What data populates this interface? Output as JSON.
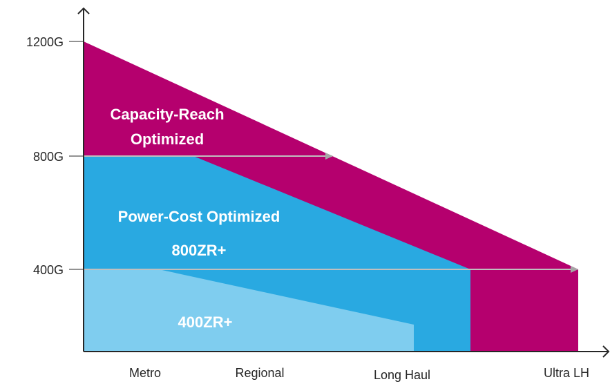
{
  "colors": {
    "capacity_reach": "#b5006e",
    "power_cost": "#29a9e1",
    "zr400": "#7fcdef",
    "axis": "#262626",
    "arrow_line": "#bfbfbf",
    "arrow_head": "#a6a6a6"
  },
  "axis": {
    "y_ticks": [
      "1200G",
      "800G",
      "400G"
    ],
    "x_categories": [
      "Metro",
      "Regional",
      "Long Haul",
      "Ultra LH"
    ]
  },
  "regions": {
    "capacity_reach": [
      "Capacity-Reach",
      "Optimized"
    ],
    "power_cost": "Power-Cost Optimized",
    "zr800": "800ZR+",
    "zr400": "400ZR+"
  }
}
